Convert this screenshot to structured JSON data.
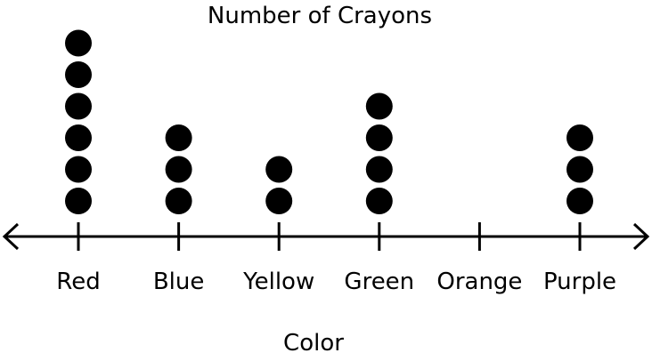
{
  "chart_data": {
    "type": "dot_plot",
    "title": "Number of Crayons",
    "xlabel": "Color",
    "ylabel": "",
    "categories": [
      "Red",
      "Blue",
      "Yellow",
      "Green",
      "Orange",
      "Purple"
    ],
    "values": [
      6,
      3,
      2,
      4,
      0,
      3
    ],
    "grid": false,
    "legend": "none",
    "dot_color": "#000000"
  }
}
